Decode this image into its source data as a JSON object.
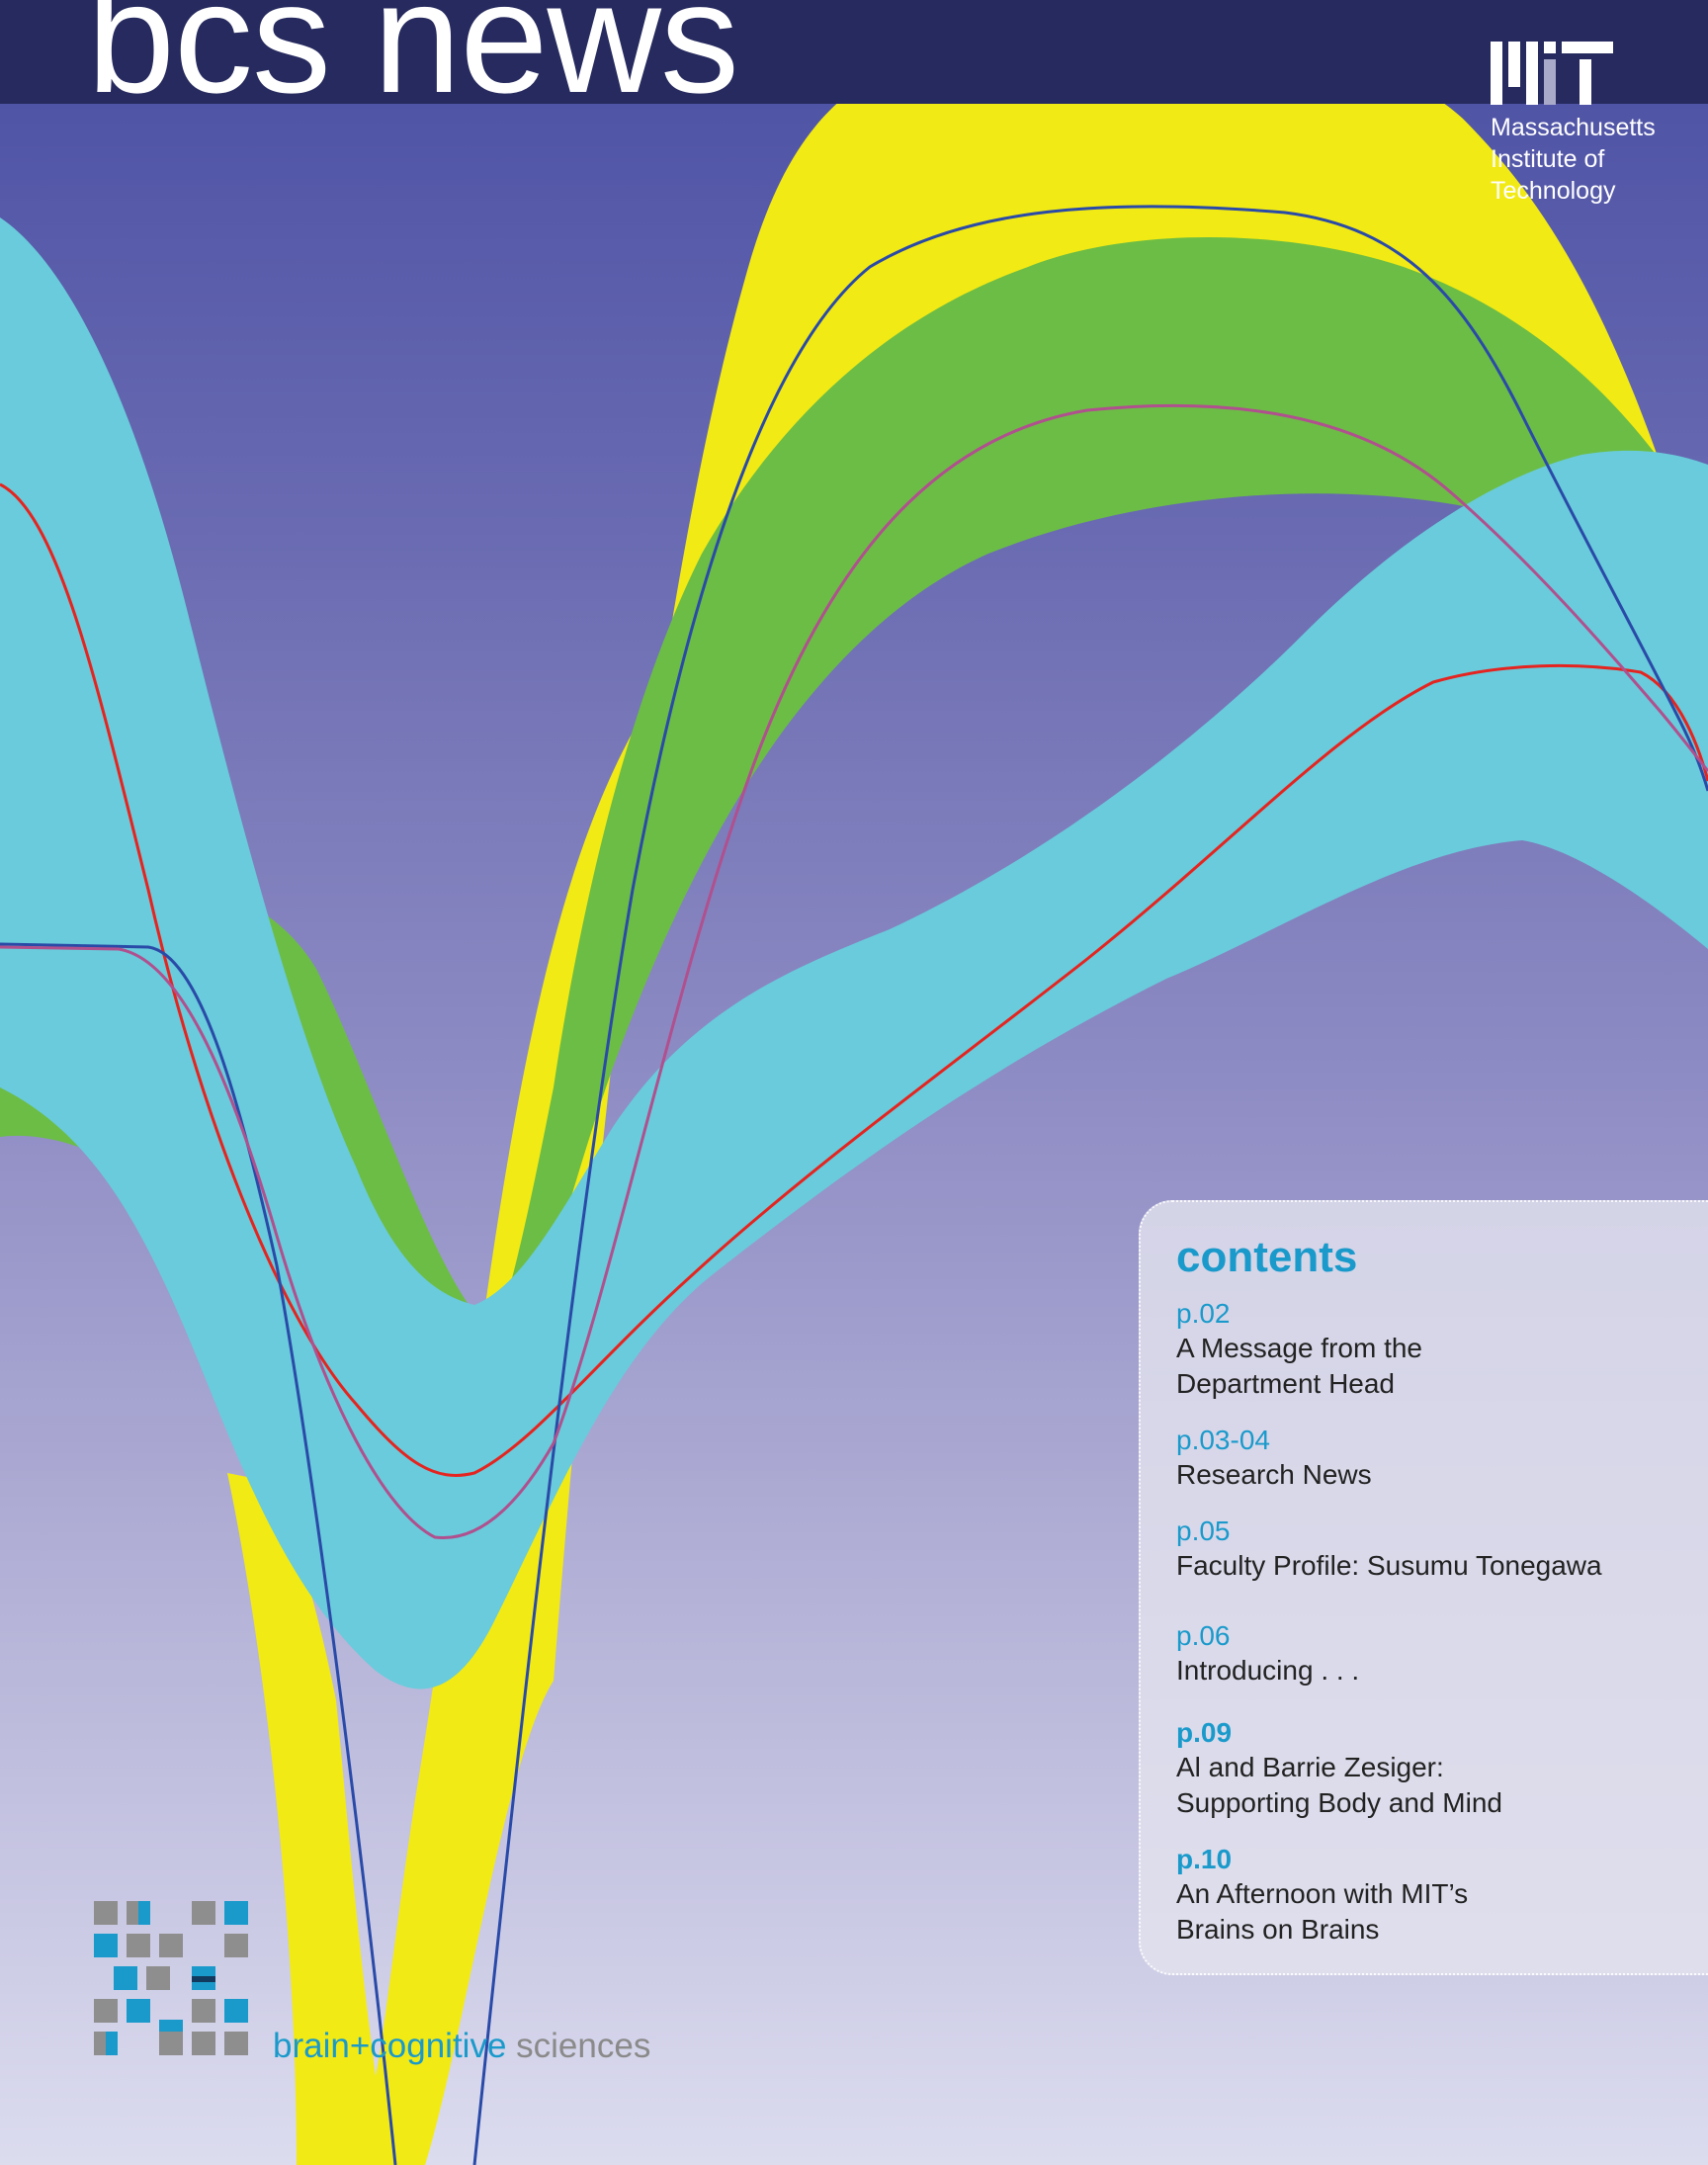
{
  "masthead": {
    "title": "bcs news",
    "logo_icon": "mit-logo-icon",
    "institution": [
      "Massachusetts",
      "Institute of",
      "Technology"
    ]
  },
  "contents": {
    "heading": "contents",
    "items": [
      {
        "page": "p.02",
        "title_lines": [
          "A Message from the",
          "Department Head"
        ]
      },
      {
        "page": "p.03-04",
        "title_lines": [
          "Research News"
        ]
      },
      {
        "page": "p.05",
        "title_lines": [
          "Faculty Profile: Susumu Tonegawa"
        ]
      },
      {
        "page": "p.06",
        "title_lines": [
          "Introducing . . ."
        ]
      },
      {
        "page": "p.09",
        "title_lines": [
          "Al and Barrie Zesiger:",
          "Supporting Body and Mind"
        ]
      },
      {
        "page": "p.10",
        "title_lines": [
          "An Afternoon with MIT’s",
          "Brains on Brains"
        ]
      }
    ]
  },
  "footer_logo": {
    "icon": "bcs-grid-logo-icon",
    "brain": "brain",
    "plus": "+",
    "cognitive": "cognitive",
    "sciences": "sciences"
  },
  "colors": {
    "accent": "#1a9acb",
    "masthead": "#262a5e",
    "band_yellow": "#f2ea14",
    "band_green": "#6cbd45",
    "band_cyan": "#69cbdb",
    "line_red": "#e52420",
    "line_blue": "#2a4aa8",
    "line_magenta": "#b0508e"
  }
}
